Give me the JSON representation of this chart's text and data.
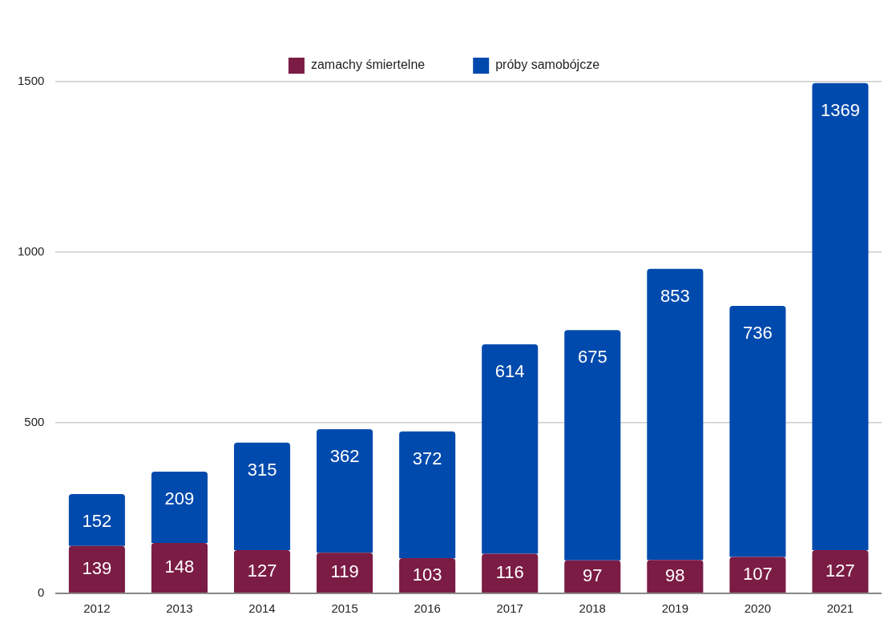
{
  "chart_data": {
    "type": "bar",
    "stacked": true,
    "categories": [
      "2012",
      "2013",
      "2014",
      "2015",
      "2016",
      "2017",
      "2018",
      "2019",
      "2020",
      "2021"
    ],
    "series": [
      {
        "name": "zamachy śmiertelne",
        "color": "#7b1c45",
        "values": [
          139,
          148,
          127,
          119,
          103,
          116,
          97,
          98,
          107,
          127
        ]
      },
      {
        "name": "próby samobójcze",
        "color": "#004aad",
        "values": [
          152,
          209,
          315,
          362,
          372,
          614,
          675,
          853,
          736,
          1369
        ]
      }
    ],
    "ylim": [
      0,
      1500
    ],
    "yticks": [
      0,
      500,
      1000,
      1500
    ],
    "grid": "y",
    "legend": "top",
    "data_labels": true
  }
}
